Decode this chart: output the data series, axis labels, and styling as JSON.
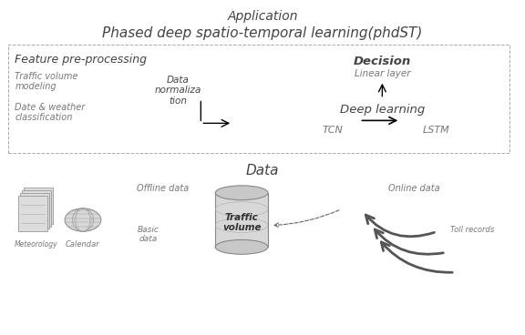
{
  "title_app": "Application",
  "title_phdst": "Phased deep spatio-temporal learning(phdST)",
  "section_feature": "Feature pre-processing",
  "text_decision": "Decision",
  "text_linear": "Linear layer",
  "section_deep": "Deep learning",
  "section_data": "Data",
  "text_traffic": "Traffic volume\nmodeling",
  "text_date": "Date & weather\nclassification",
  "text_norm": "Data\nnormaliza\ntion",
  "text_tcn": "TCN",
  "text_lstm": "LSTM",
  "text_meteorology": "Meteorology",
  "text_calendar": "Calendar",
  "text_offline": "Offline data",
  "text_basic": "Basic\ndata",
  "text_traffic_vol": "Traffic\nvolume",
  "text_online": "Online data",
  "text_toll": "Toll records",
  "gray_dark": "#444444",
  "gray_med": "#777777",
  "gray_light": "#aaaaaa",
  "gray_fill": "#cccccc",
  "gray_lighter": "#e0e0e0"
}
